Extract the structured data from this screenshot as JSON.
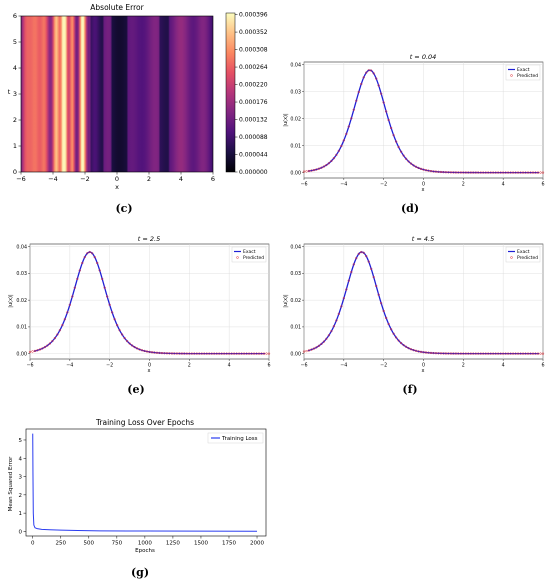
{
  "colors": {
    "exact": "#1f1fd6",
    "predicted": "#e0303a",
    "loss": "#2a3cf0",
    "grid": "#d9d9d9",
    "magma_stops": [
      "#000004",
      "#1c1044",
      "#4f127b",
      "#812581",
      "#b5367a",
      "#e55064",
      "#fb8761",
      "#fec287",
      "#fcfdbf"
    ]
  },
  "panels": {
    "c": {
      "caption": "(c)",
      "chart_data": {
        "type": "heatmap",
        "title": "Absolute Error",
        "xlabel": "x",
        "ylabel": "t",
        "xlim": [
          -6,
          6
        ],
        "ylim": [
          0,
          6
        ],
        "xticks": [
          "−6",
          "−4",
          "−2",
          "0",
          "2",
          "4",
          "6"
        ],
        "yticks": [
          "0",
          "1",
          "2",
          "3",
          "4",
          "5",
          "6"
        ],
        "colorbar": {
          "min": 0,
          "max": 0.0004,
          "ticks": [
            "0.000000",
            "0.000044",
            "0.000088",
            "0.000132",
            "0.000176",
            "0.000220",
            "0.000264",
            "0.000308",
            "0.000352",
            "0.000396"
          ]
        },
        "pattern": "vertical error bands over x; largest error (~0.0004) around x ≈ -3.5 to -2, small error for x > 0"
      }
    },
    "d": {
      "caption": "(d)",
      "chart_data": {
        "type": "line",
        "title": "t = 0.04",
        "xlabel": "x",
        "ylabel": "|u(x)|",
        "xlim": [
          -6,
          6
        ],
        "ylim": [
          -0.002,
          0.041
        ],
        "xticks": [
          "−6",
          "−4",
          "−2",
          "0",
          "2",
          "4",
          "6"
        ],
        "yticks": [
          "0.00",
          "0.01",
          "0.02",
          "0.03",
          "0.04"
        ],
        "legend": {
          "position": "top-right",
          "entries": [
            "Exact",
            "Predicted"
          ]
        },
        "peak_x": -2.7,
        "peak_y": 0.038,
        "series": [
          {
            "name": "Exact",
            "style": "line"
          },
          {
            "name": "Predicted",
            "style": "markers"
          }
        ]
      }
    },
    "e": {
      "caption": "(e)",
      "chart_data": {
        "type": "line",
        "title": "t = 2.5",
        "xlabel": "x",
        "ylabel": "|u(x)|",
        "xlim": [
          -6,
          6
        ],
        "ylim": [
          -0.002,
          0.041
        ],
        "xticks": [
          "−6",
          "−4",
          "−2",
          "0",
          "2",
          "4",
          "6"
        ],
        "yticks": [
          "0.00",
          "0.01",
          "0.02",
          "0.03",
          "0.04"
        ],
        "legend": {
          "position": "top-right",
          "entries": [
            "Exact",
            "Predicted"
          ]
        },
        "peak_x": -3.0,
        "peak_y": 0.038,
        "series": [
          {
            "name": "Exact",
            "style": "line"
          },
          {
            "name": "Predicted",
            "style": "markers"
          }
        ]
      }
    },
    "f": {
      "caption": "(f)",
      "chart_data": {
        "type": "line",
        "title": "t = 4.5",
        "xlabel": "x",
        "ylabel": "|u(x)|",
        "xlim": [
          -6,
          6
        ],
        "ylim": [
          -0.002,
          0.041
        ],
        "xticks": [
          "−6",
          "−4",
          "−2",
          "0",
          "2",
          "4",
          "6"
        ],
        "yticks": [
          "0.00",
          "0.01",
          "0.02",
          "0.03",
          "0.04"
        ],
        "legend": {
          "position": "top-right",
          "entries": [
            "Exact",
            "Predicted"
          ]
        },
        "peak_x": -3.1,
        "peak_y": 0.038,
        "series": [
          {
            "name": "Exact",
            "style": "line"
          },
          {
            "name": "Predicted",
            "style": "markers"
          }
        ]
      }
    },
    "g": {
      "caption": "(g)",
      "chart_data": {
        "type": "line",
        "title": "Training Loss Over Epochs",
        "xlabel": "Epochs",
        "ylabel": "Mean Squared Error",
        "xlim": [
          -60,
          2080
        ],
        "ylim": [
          -0.25,
          5.6
        ],
        "xticks": [
          "0",
          "250",
          "500",
          "750",
          "1000",
          "1250",
          "1500",
          "1750",
          "2000"
        ],
        "yticks": [
          "0",
          "1",
          "2",
          "3",
          "4",
          "5"
        ],
        "legend": {
          "position": "top-right",
          "entries": [
            "Training Loss"
          ]
        },
        "series": [
          {
            "name": "Training Loss",
            "x": [
              0,
              2,
              5,
              10,
              20,
              40,
              80,
              150,
              250,
              400,
              600,
              1000,
              1500,
              2000
            ],
            "y": [
              5.35,
              3.2,
              1.0,
              0.35,
              0.2,
              0.15,
              0.11,
              0.09,
              0.07,
              0.05,
              0.03,
              0.02,
              0.015,
              0.01
            ]
          }
        ]
      }
    }
  }
}
